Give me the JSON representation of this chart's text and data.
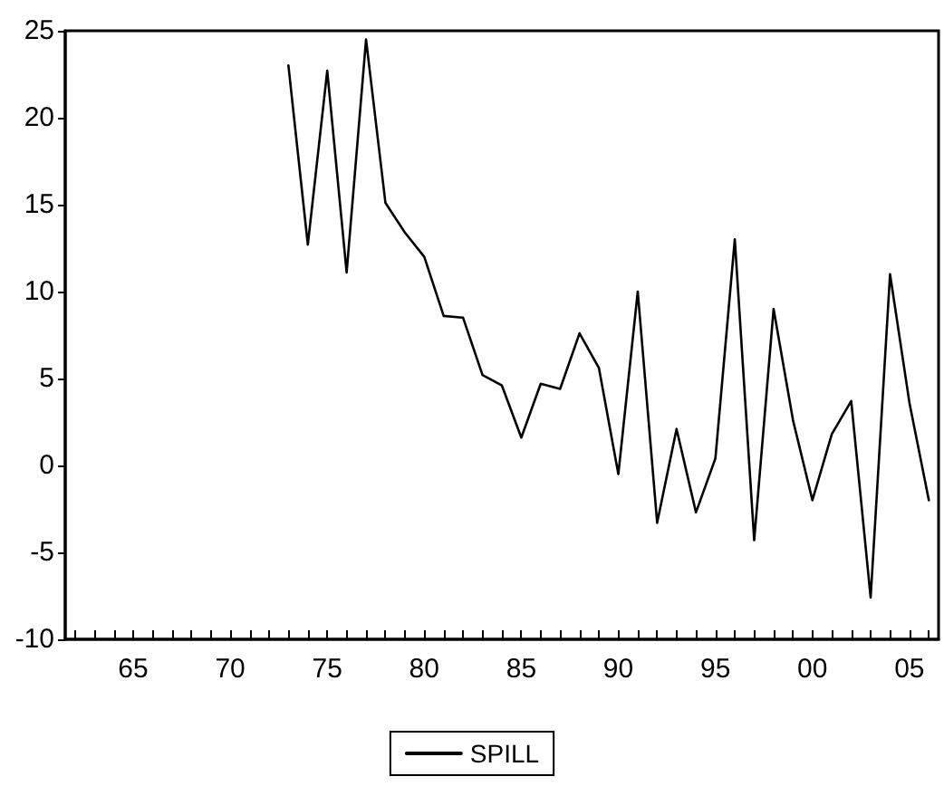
{
  "chart_data": {
    "type": "line",
    "x": [
      1973,
      1974,
      1975,
      1976,
      1977,
      1978,
      1979,
      1980,
      1981,
      1982,
      1983,
      1984,
      1985,
      1986,
      1987,
      1988,
      1989,
      1990,
      1991,
      1992,
      1993,
      1994,
      1995,
      1996,
      1997,
      1998,
      1999,
      2000,
      2001,
      2002,
      2003,
      2004,
      2005,
      2006
    ],
    "series": [
      {
        "name": "SPILL",
        "color": "#000000",
        "values": [
          23,
          12.7,
          22.7,
          11.1,
          24.5,
          15.1,
          13.4,
          12.0,
          8.6,
          8.5,
          5.2,
          4.6,
          1.6,
          4.7,
          4.4,
          7.6,
          5.6,
          -0.5,
          10.0,
          -3.3,
          2.1,
          -2.7,
          0.4,
          13.0,
          -4.3,
          9.0,
          2.6,
          -2.0,
          1.8,
          3.7,
          -7.6,
          11.0,
          3.6,
          -2.0
        ]
      }
    ],
    "xlim": [
      1961.5,
      2006.5
    ],
    "xticks": [
      {
        "value": 1962,
        "label": null
      },
      {
        "value": 1963,
        "label": null
      },
      {
        "value": 1964,
        "label": null
      },
      {
        "value": 1965,
        "label": "65"
      },
      {
        "value": 1966,
        "label": null
      },
      {
        "value": 1967,
        "label": null
      },
      {
        "value": 1968,
        "label": null
      },
      {
        "value": 1969,
        "label": null
      },
      {
        "value": 1970,
        "label": "70"
      },
      {
        "value": 1971,
        "label": null
      },
      {
        "value": 1972,
        "label": null
      },
      {
        "value": 1973,
        "label": null
      },
      {
        "value": 1974,
        "label": null
      },
      {
        "value": 1975,
        "label": "75"
      },
      {
        "value": 1976,
        "label": null
      },
      {
        "value": 1977,
        "label": null
      },
      {
        "value": 1978,
        "label": null
      },
      {
        "value": 1979,
        "label": null
      },
      {
        "value": 1980,
        "label": "80"
      },
      {
        "value": 1981,
        "label": null
      },
      {
        "value": 1982,
        "label": null
      },
      {
        "value": 1983,
        "label": null
      },
      {
        "value": 1984,
        "label": null
      },
      {
        "value": 1985,
        "label": "85"
      },
      {
        "value": 1986,
        "label": null
      },
      {
        "value": 1987,
        "label": null
      },
      {
        "value": 1988,
        "label": null
      },
      {
        "value": 1989,
        "label": null
      },
      {
        "value": 1990,
        "label": "90"
      },
      {
        "value": 1991,
        "label": null
      },
      {
        "value": 1992,
        "label": null
      },
      {
        "value": 1993,
        "label": null
      },
      {
        "value": 1994,
        "label": null
      },
      {
        "value": 1995,
        "label": "95"
      },
      {
        "value": 1996,
        "label": null
      },
      {
        "value": 1997,
        "label": null
      },
      {
        "value": 1998,
        "label": null
      },
      {
        "value": 1999,
        "label": null
      },
      {
        "value": 2000,
        "label": "00"
      },
      {
        "value": 2001,
        "label": null
      },
      {
        "value": 2002,
        "label": null
      },
      {
        "value": 2003,
        "label": null
      },
      {
        "value": 2004,
        "label": null
      },
      {
        "value": 2005,
        "label": "05"
      },
      {
        "value": 2006,
        "label": null
      }
    ],
    "ylim": [
      -10,
      25
    ],
    "yticks": [
      -10,
      -5,
      0,
      5,
      10,
      15,
      20,
      25
    ],
    "legend": "bottom",
    "marker": "none",
    "line_style": "solid"
  }
}
